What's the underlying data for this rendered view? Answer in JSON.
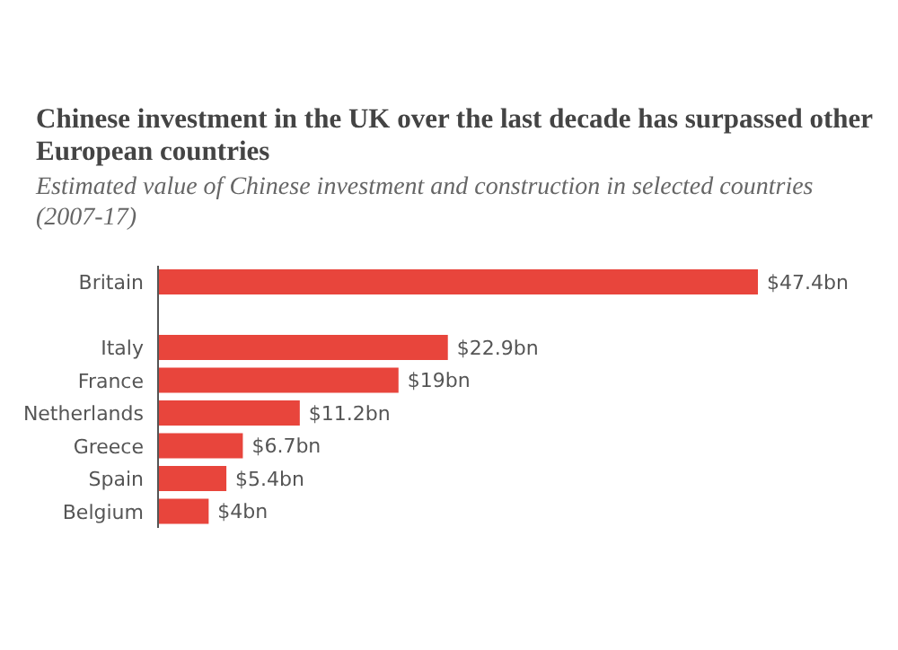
{
  "chart_data": {
    "type": "bar",
    "orientation": "horizontal",
    "title": "Chinese investment in the UK over the last decade has surpassed other European countries",
    "subtitle": "Estimated value of Chinese investment and construction in selected countries (2007-17)",
    "categories": [
      "Britain",
      null,
      "Italy",
      "France",
      "Netherlands",
      "Greece",
      "Spain",
      "Belgium"
    ],
    "values": [
      47.4,
      null,
      22.9,
      19,
      11.2,
      6.7,
      5.4,
      4
    ],
    "value_labels": [
      "$47.4bn",
      null,
      "$22.9bn",
      "$19bn",
      "$11.2bn",
      "$6.7bn",
      "$5.4bn",
      "$4bn"
    ],
    "color": "#e8453c"
  }
}
